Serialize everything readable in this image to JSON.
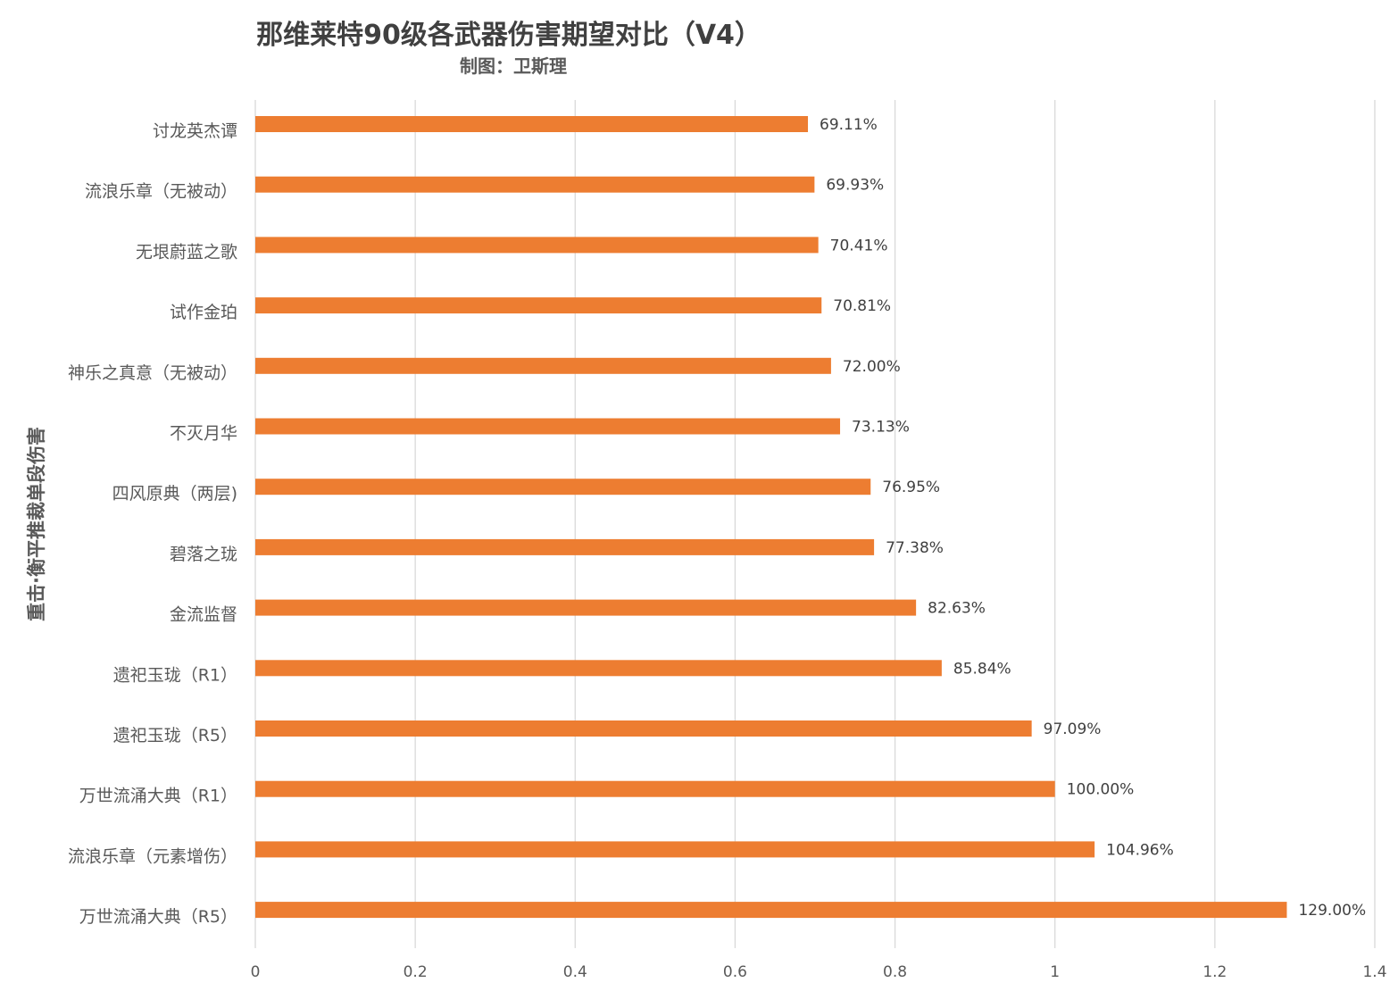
{
  "chart_data": {
    "type": "bar",
    "orientation": "horizontal",
    "title": "那维莱特90级各武器伤害期望对比（V4）",
    "subtitle": "制图：卫斯理",
    "ylabel": "重击·衡平推裁单段伤害",
    "xlabel": "",
    "xlim": [
      0,
      1.4
    ],
    "xticks": [
      "0",
      "0.2",
      "0.4",
      "0.6",
      "0.8",
      "1",
      "1.2",
      "1.4"
    ],
    "grid": true,
    "legend": "none",
    "bar_color": "#ED7D31",
    "categories": [
      "讨龙英杰谭",
      "流浪乐章（无被动）",
      "无垠蔚蓝之歌",
      "试作金珀",
      "神乐之真意（无被动）",
      "不灭月华",
      "四风原典（两层)",
      "碧落之珑",
      "金流监督",
      "遗祀玉珑（R1）",
      "遗祀玉珑（R5）",
      "万世流涌大典（R1）",
      "流浪乐章（元素增伤）",
      "万世流涌大典（R5）"
    ],
    "values": [
      0.6911,
      0.6993,
      0.7041,
      0.7081,
      0.72,
      0.7313,
      0.7695,
      0.7738,
      0.8263,
      0.8584,
      0.9709,
      1.0,
      1.0496,
      1.29
    ],
    "data_labels": [
      "69.11%",
      "69.93%",
      "70.41%",
      "70.81%",
      "72.00%",
      "73.13%",
      "76.95%",
      "77.38%",
      "82.63%",
      "85.84%",
      "97.09%",
      "100.00%",
      "104.96%",
      "129.00%"
    ]
  }
}
